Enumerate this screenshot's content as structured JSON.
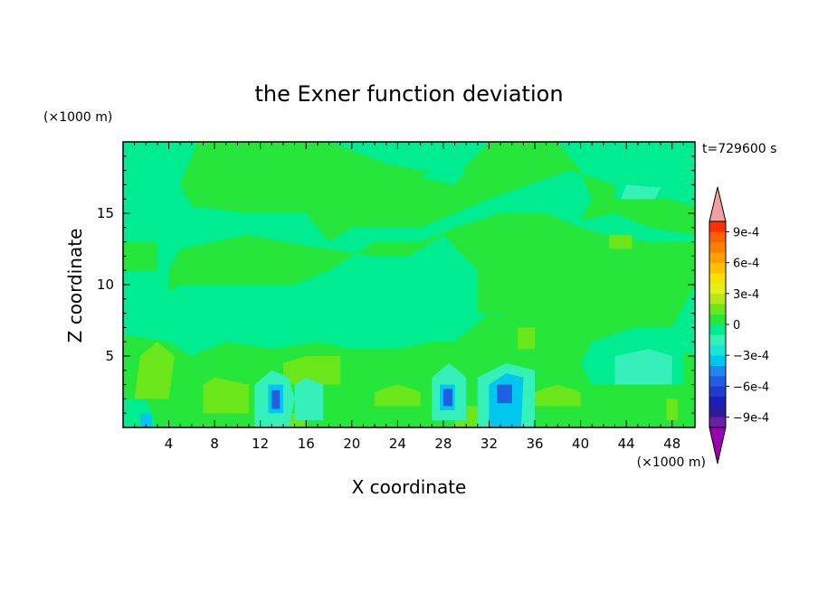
{
  "chart_data": {
    "type": "heatmap",
    "title": "the Exner function deviation",
    "xlabel": "X coordinate",
    "ylabel": "Z coordinate",
    "x_unit": "(×1000 m)",
    "y_unit": "(×1000 m)",
    "time_label": "t=729600 s",
    "xlim": [
      0,
      50
    ],
    "ylim": [
      0,
      20
    ],
    "x_ticks": [
      4,
      8,
      12,
      16,
      20,
      24,
      28,
      32,
      36,
      40,
      44,
      48
    ],
    "x_tick_labels": [
      "4",
      "8",
      "12",
      "16",
      "20",
      "24",
      "28",
      "32",
      "36",
      "40",
      "44",
      "48"
    ],
    "y_ticks": [
      5,
      10,
      15
    ],
    "y_tick_labels": [
      "5",
      "10",
      "15"
    ],
    "colorbar": {
      "levels": [
        -0.0011,
        -0.001,
        -0.0009,
        -0.0008,
        -0.0007,
        -0.0006,
        -0.0005,
        -0.0004,
        -0.0003,
        -0.0002,
        -0.0001,
        0,
        0.0001,
        0.0002,
        0.0003,
        0.0004,
        0.0005,
        0.0006,
        0.0007,
        0.0008,
        0.0009,
        0.001,
        0.0011
      ],
      "colors": [
        "#9b00b0",
        "#6a1fa8",
        "#2e1b9a",
        "#1a1fb8",
        "#1f3ccf",
        "#1f5fe0",
        "#1f86f0",
        "#00c6f0",
        "#17e6d8",
        "#35f0b8",
        "#00ec90",
        "#27e63b",
        "#6ae61a",
        "#b4e81a",
        "#e0f018",
        "#f8e000",
        "#ffc000",
        "#ffa000",
        "#ff8000",
        "#ff6000",
        "#ff3000",
        "#f4a0a0"
      ],
      "tick_values": [
        0.0009,
        0.0006,
        0.0003,
        0,
        -0.0003,
        -0.0006,
        -0.0009
      ],
      "tick_labels": [
        "9e-4",
        "6e-4",
        "3e-4",
        "0",
        "−3e-4",
        "−6e-4",
        "−9e-4"
      ]
    },
    "background_color": "#00ec90",
    "regions": [
      {
        "level": 5e-05,
        "points": [
          [
            6.5,
            20
          ],
          [
            18,
            20
          ],
          [
            23,
            18.5
          ],
          [
            29,
            17.5
          ],
          [
            32,
            20
          ],
          [
            38,
            20
          ],
          [
            40,
            18
          ],
          [
            41,
            16
          ],
          [
            40,
            14.5
          ],
          [
            43,
            15
          ],
          [
            46,
            14
          ],
          [
            50,
            13.5
          ],
          [
            50,
            15.5
          ],
          [
            43,
            17
          ],
          [
            39,
            18
          ],
          [
            32,
            16
          ],
          [
            26,
            14
          ],
          [
            20,
            14
          ],
          [
            18,
            13
          ],
          [
            16,
            15
          ],
          [
            11,
            15
          ],
          [
            6,
            15.5
          ],
          [
            5,
            17
          ]
        ]
      },
      {
        "level": 5e-05,
        "points": [
          [
            5,
            12.5
          ],
          [
            11,
            13.5
          ],
          [
            14,
            13
          ],
          [
            22,
            12
          ],
          [
            25,
            12
          ],
          [
            28,
            13.5
          ],
          [
            31,
            11
          ],
          [
            31,
            8
          ],
          [
            33,
            8
          ],
          [
            35,
            7
          ],
          [
            37,
            7
          ],
          [
            40,
            6
          ],
          [
            45,
            7
          ],
          [
            48,
            7
          ],
          [
            50,
            10
          ],
          [
            50,
            13
          ],
          [
            46,
            13
          ],
          [
            42,
            13.5
          ],
          [
            40,
            14
          ],
          [
            37,
            15
          ],
          [
            33,
            15
          ],
          [
            29,
            14
          ],
          [
            26,
            13
          ],
          [
            22,
            13
          ],
          [
            18,
            11
          ],
          [
            15,
            10
          ],
          [
            14,
            10
          ],
          [
            11,
            10
          ],
          [
            5,
            10
          ],
          [
            4,
            9.5
          ],
          [
            4,
            11
          ]
        ]
      },
      {
        "level": 5e-05,
        "points": [
          [
            0,
            11
          ],
          [
            0,
            13
          ],
          [
            3,
            13
          ],
          [
            3,
            11
          ]
        ]
      },
      {
        "level": 5e-05,
        "points": [
          [
            0,
            2
          ],
          [
            50,
            2
          ],
          [
            50,
            5
          ],
          [
            47,
            6
          ],
          [
            44,
            6.5
          ],
          [
            42,
            6.5
          ],
          [
            40,
            7.5
          ],
          [
            38,
            8
          ],
          [
            35,
            7.5
          ],
          [
            32,
            8
          ],
          [
            29,
            6
          ],
          [
            27,
            6
          ],
          [
            24,
            5.5
          ],
          [
            20,
            5.5
          ],
          [
            17,
            6
          ],
          [
            13,
            5.5
          ],
          [
            9,
            6
          ],
          [
            6,
            5
          ],
          [
            4,
            6
          ],
          [
            0,
            6.5
          ]
        ]
      },
      {
        "level": 5e-05,
        "points": [
          [
            0,
            0
          ],
          [
            50,
            0
          ],
          [
            50,
            2
          ],
          [
            0,
            2
          ]
        ]
      },
      {
        "level": -5e-05,
        "points": [
          [
            41,
            3
          ],
          [
            49,
            3
          ],
          [
            49,
            6
          ],
          [
            47,
            7
          ],
          [
            45,
            7
          ],
          [
            41,
            6
          ],
          [
            40,
            4.5
          ]
        ]
      },
      {
        "level": -5e-05,
        "points": [
          [
            43,
            16
          ],
          [
            47,
            16
          ],
          [
            48,
            17
          ],
          [
            46,
            17.5
          ],
          [
            43,
            17
          ]
        ]
      },
      {
        "level": -5e-05,
        "points": [
          [
            26,
            17.5
          ],
          [
            28,
            18.5
          ],
          [
            30,
            18
          ],
          [
            29,
            17
          ]
        ]
      },
      {
        "level": -5e-05,
        "points": [
          [
            0,
            0
          ],
          [
            0,
            2
          ],
          [
            2,
            2
          ],
          [
            3,
            0
          ]
        ]
      },
      {
        "level": 0.00015,
        "points": [
          [
            1,
            2
          ],
          [
            4,
            2
          ],
          [
            4.5,
            5
          ],
          [
            3,
            6
          ],
          [
            1.5,
            5
          ]
        ]
      },
      {
        "level": 0.00015,
        "points": [
          [
            7,
            1
          ],
          [
            11,
            1
          ],
          [
            11,
            3
          ],
          [
            8,
            3.5
          ],
          [
            7,
            3
          ]
        ]
      },
      {
        "level": 0.00015,
        "points": [
          [
            14,
            3
          ],
          [
            19,
            3
          ],
          [
            19,
            5
          ],
          [
            16,
            5
          ],
          [
            14,
            4.5
          ]
        ]
      },
      {
        "level": 0.00015,
        "points": [
          [
            22,
            1.5
          ],
          [
            26,
            1.5
          ],
          [
            26,
            2.5
          ],
          [
            24,
            3
          ],
          [
            22,
            2.5
          ]
        ]
      },
      {
        "level": 0.00015,
        "points": [
          [
            36,
            1.5
          ],
          [
            40,
            1.5
          ],
          [
            40,
            2.5
          ],
          [
            38,
            3
          ],
          [
            36,
            2.5
          ]
        ]
      },
      {
        "level": 0.00015,
        "points": [
          [
            34.5,
            5.5
          ],
          [
            36,
            5.5
          ],
          [
            36,
            7
          ],
          [
            34.5,
            7
          ]
        ]
      },
      {
        "level": 0.00015,
        "points": [
          [
            42.5,
            12.5
          ],
          [
            44.5,
            12.5
          ],
          [
            44.5,
            13.5
          ],
          [
            42.5,
            13.5
          ]
        ]
      },
      {
        "level": 0.00015,
        "points": [
          [
            29,
            0
          ],
          [
            31,
            0
          ],
          [
            31,
            1.5
          ],
          [
            29,
            1.5
          ]
        ]
      },
      {
        "level": 0.00015,
        "points": [
          [
            14.5,
            0
          ],
          [
            16,
            0
          ],
          [
            16,
            1
          ],
          [
            14.5,
            1
          ]
        ]
      },
      {
        "level": 0.00015,
        "points": [
          [
            47.5,
            0.5
          ],
          [
            48.5,
            0.5
          ],
          [
            48.5,
            2
          ],
          [
            47.5,
            2
          ]
        ]
      },
      {
        "level": -0.00015,
        "points": [
          [
            11.5,
            0
          ],
          [
            14.5,
            0
          ],
          [
            15,
            2
          ],
          [
            14.5,
            3.5
          ],
          [
            13,
            4
          ],
          [
            11.5,
            3
          ]
        ]
      },
      {
        "level": -0.00015,
        "points": [
          [
            15,
            0.5
          ],
          [
            17.5,
            0.5
          ],
          [
            17.5,
            3
          ],
          [
            16,
            3.5
          ],
          [
            15,
            3
          ]
        ]
      },
      {
        "level": -0.00015,
        "points": [
          [
            27,
            0.5
          ],
          [
            30,
            0.5
          ],
          [
            30,
            3.5
          ],
          [
            28.5,
            4.5
          ],
          [
            27,
            3.5
          ]
        ]
      },
      {
        "level": -0.00015,
        "points": [
          [
            31,
            0
          ],
          [
            36,
            0
          ],
          [
            36,
            4
          ],
          [
            33.5,
            4.5
          ],
          [
            31,
            3.5
          ]
        ]
      },
      {
        "level": -0.00015,
        "points": [
          [
            43,
            3
          ],
          [
            48,
            3
          ],
          [
            48,
            5
          ],
          [
            46,
            5.5
          ],
          [
            43,
            5
          ]
        ]
      },
      {
        "level": -0.00015,
        "points": [
          [
            43.5,
            16
          ],
          [
            46.5,
            16
          ],
          [
            47,
            16.8
          ],
          [
            44,
            17
          ]
        ]
      },
      {
        "level": -0.00035,
        "points": [
          [
            12.7,
            1
          ],
          [
            14,
            1
          ],
          [
            14,
            3
          ],
          [
            12.7,
            3
          ]
        ]
      },
      {
        "level": -0.00035,
        "points": [
          [
            27.7,
            1.2
          ],
          [
            29,
            1.2
          ],
          [
            29,
            3
          ],
          [
            27.7,
            3
          ]
        ]
      },
      {
        "level": -0.00035,
        "points": [
          [
            32,
            0
          ],
          [
            34.8,
            0
          ],
          [
            35,
            3.5
          ],
          [
            33.5,
            3.8
          ],
          [
            32,
            3
          ]
        ]
      },
      {
        "level": -0.00035,
        "points": [
          [
            1.5,
            0
          ],
          [
            2.5,
            0
          ],
          [
            2.5,
            1
          ],
          [
            1.5,
            1
          ]
        ]
      },
      {
        "level": -0.00055,
        "points": [
          [
            13,
            1.3
          ],
          [
            13.7,
            1.3
          ],
          [
            13.7,
            2.6
          ],
          [
            13,
            2.6
          ]
        ]
      },
      {
        "level": -0.00055,
        "points": [
          [
            28,
            1.5
          ],
          [
            28.8,
            1.5
          ],
          [
            28.8,
            2.7
          ],
          [
            28,
            2.7
          ]
        ]
      },
      {
        "level": -0.00055,
        "points": [
          [
            32.7,
            1.7
          ],
          [
            34,
            1.7
          ],
          [
            34,
            3
          ],
          [
            32.7,
            3
          ]
        ]
      }
    ]
  }
}
